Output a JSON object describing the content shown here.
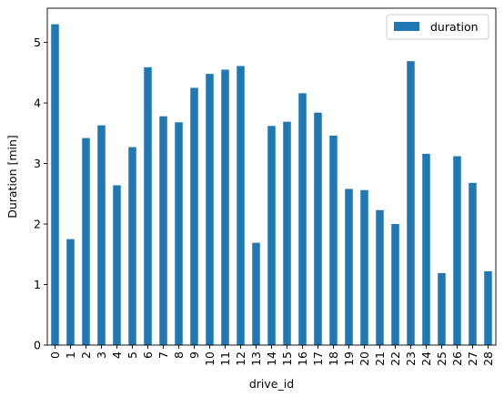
{
  "chart_data": {
    "type": "bar",
    "xlabel": "drive_id",
    "ylabel": "Duration [min]",
    "categories": [
      "0",
      "1",
      "2",
      "3",
      "4",
      "5",
      "6",
      "7",
      "8",
      "9",
      "10",
      "11",
      "12",
      "13",
      "14",
      "15",
      "16",
      "17",
      "18",
      "19",
      "20",
      "21",
      "22",
      "23",
      "24",
      "25",
      "26",
      "27",
      "28"
    ],
    "series": [
      {
        "name": "duration",
        "color": "#1f77b4",
        "values": [
          5.3,
          1.75,
          3.42,
          3.63,
          2.64,
          3.27,
          4.59,
          3.78,
          3.68,
          4.25,
          4.48,
          4.55,
          4.61,
          1.69,
          3.62,
          3.69,
          4.16,
          3.84,
          3.46,
          2.58,
          2.56,
          2.23,
          2.0,
          4.69,
          3.16,
          1.19,
          3.12,
          2.68,
          1.22
        ]
      }
    ],
    "ylim": [
      0,
      5.565
    ],
    "yticks": [
      0,
      1,
      2,
      3,
      4,
      5
    ],
    "grid": false,
    "legend_position": "top-right"
  }
}
